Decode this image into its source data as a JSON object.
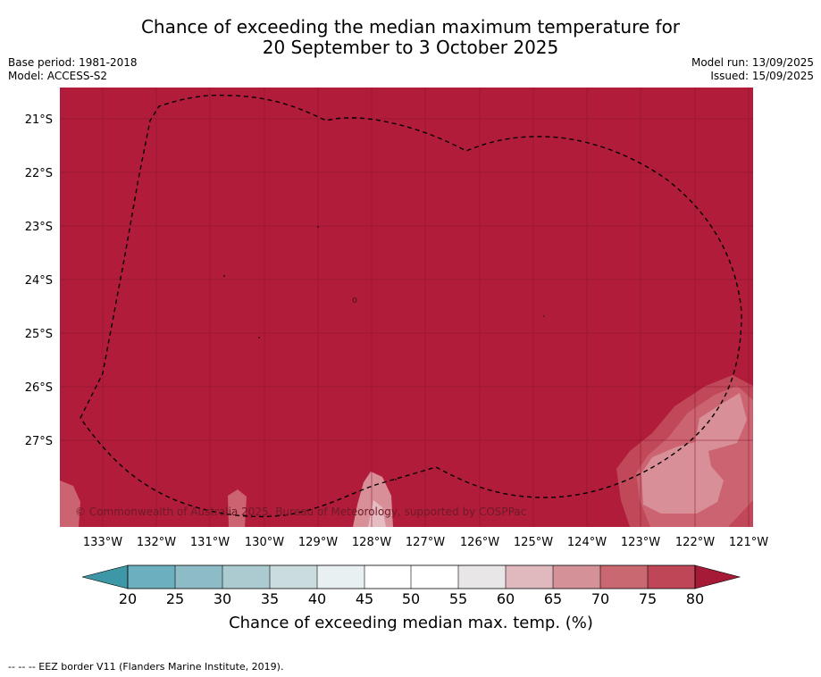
{
  "title": {
    "line1": "Chance of exceeding the median maximum temperature for",
    "line2": "20 September to 3 October 2025"
  },
  "header": {
    "base_period": "Base period: 1981-2018",
    "model": "Model: ACCESS-S2",
    "model_run": "Model run: 13/09/2025",
    "issued": "Issued: 15/09/2025"
  },
  "map": {
    "latitude_labels": [
      "21°S",
      "22°S",
      "23°S",
      "24°S",
      "25°S",
      "26°S",
      "27°S"
    ],
    "longitude_labels": [
      "133°W",
      "132°W",
      "131°W",
      "130°W",
      "129°W",
      "128°W",
      "127°W",
      "126°W",
      "125°W",
      "124°W",
      "123°W",
      "122°W",
      "121°W"
    ],
    "copyright": "© Commonwealth of Australia 2025, Bureau of Meteorology, supported by COSPPac",
    "dominant_category": ">80",
    "colors": {
      "gt80": "#b11c3a",
      "c75_80": "#c04858",
      "c70_75": "#cb6470",
      "c65_70": "#d88f98",
      "c60_65": "#e4bcc1"
    }
  },
  "colorbar": {
    "ticks": [
      "20",
      "25",
      "30",
      "35",
      "40",
      "45",
      "50",
      "55",
      "60",
      "65",
      "70",
      "75",
      "80"
    ],
    "title": "Chance of exceeding median max. temp. (%)",
    "colors": {
      "below20": "#3e97a6",
      "c20_25": "#6cafbe",
      "c25_30": "#8dbcc6",
      "c30_35": "#abcbd0",
      "c35_40": "#cbdcdf",
      "c40_45": "#e9f0f2",
      "c45_50": "#ffffff",
      "c50_55": "#ffffff",
      "c55_60": "#e9e6e7",
      "c60_65": "#e0b9bf",
      "c65_70": "#d49198",
      "c70_75": "#ca6872",
      "c75_80": "#bf4656",
      "above80": "#a51a36"
    }
  },
  "footnote": "--  --  -- EEZ border V11 (Flanders Marine Institute, 2019)."
}
